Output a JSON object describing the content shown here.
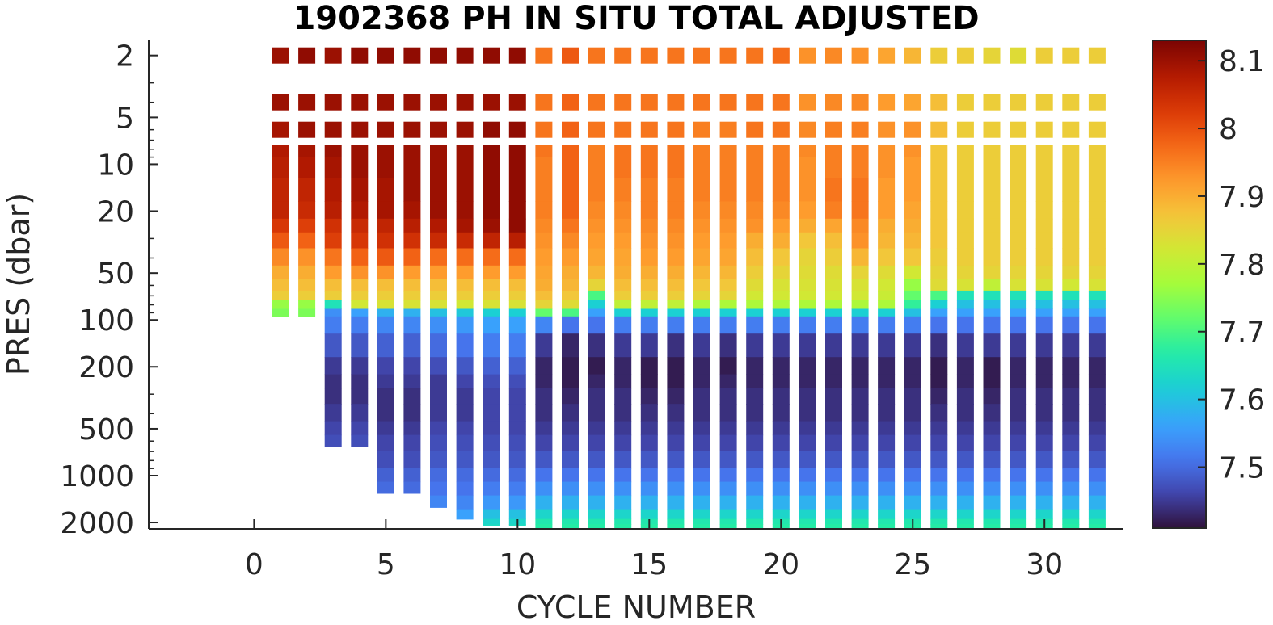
{
  "chart_data": {
    "type": "heatmap",
    "title": "1902368  PH IN SITU TOTAL ADJUSTED",
    "xlabel": "CYCLE NUMBER",
    "ylabel": "PRES (dbar)",
    "xlim": [
      -4,
      33
    ],
    "ylim": [
      1.6,
      2200
    ],
    "y_scale": "log",
    "y_reversed": true,
    "x_ticks": [
      "0",
      "5",
      "10",
      "15",
      "20",
      "25",
      "30"
    ],
    "y_ticks": [
      "2",
      "5",
      "10",
      "20",
      "50",
      "100",
      "200",
      "500",
      "1000",
      "2000"
    ],
    "colorbar": {
      "range": [
        7.41,
        8.13
      ],
      "ticks": [
        "7.5",
        "7.6",
        "7.7",
        "7.8",
        "7.9",
        "8",
        "8.1"
      ],
      "colormap": "turbo",
      "placement": "right"
    },
    "pres_levels": [
      2,
      4,
      6,
      8,
      10,
      15,
      20,
      25,
      30,
      40,
      50,
      60,
      70,
      80,
      90,
      100,
      150,
      200,
      250,
      300,
      400,
      500,
      600,
      800,
      1000,
      1200,
      1500,
      1800,
      2000,
      2100
    ],
    "profiles": [
      {
        "cycle": 1,
        "max_pres": 95,
        "ph": [
          8.1,
          8.1,
          8.09,
          8.08,
          8.07,
          8.06,
          8.06,
          8.03,
          7.99,
          7.94,
          7.9,
          7.88,
          7.86,
          7.76,
          7.74
        ]
      },
      {
        "cycle": 2,
        "max_pres": 95,
        "ph": [
          8.11,
          8.1,
          8.1,
          8.09,
          8.08,
          8.06,
          8.05,
          8.02,
          7.98,
          7.93,
          7.9,
          7.88,
          7.86,
          7.76,
          7.74
        ]
      },
      {
        "cycle": 3,
        "max_pres": 650,
        "ph": [
          8.1,
          8.1,
          8.1,
          8.1,
          8.09,
          8.08,
          8.07,
          8.04,
          8.02,
          7.96,
          7.92,
          7.88,
          7.86,
          7.65,
          7.54,
          7.52,
          7.48,
          7.45,
          7.44,
          7.44,
          7.45,
          7.46,
          7.47
        ]
      },
      {
        "cycle": 4,
        "max_pres": 650,
        "ph": [
          8.11,
          8.1,
          8.1,
          8.1,
          8.1,
          8.09,
          8.08,
          8.05,
          8.03,
          7.98,
          7.93,
          7.88,
          7.86,
          7.82,
          7.56,
          7.52,
          7.48,
          7.45,
          7.44,
          7.44,
          7.45,
          7.46,
          7.47
        ]
      },
      {
        "cycle": 5,
        "max_pres": 1300,
        "ph": [
          8.11,
          8.1,
          8.1,
          8.1,
          8.1,
          8.09,
          8.09,
          8.06,
          8.04,
          7.99,
          7.93,
          7.88,
          7.86,
          7.83,
          7.58,
          7.53,
          7.49,
          7.46,
          7.45,
          7.44,
          7.44,
          7.45,
          7.46,
          7.47,
          7.49,
          7.5
        ]
      },
      {
        "cycle": 6,
        "max_pres": 1300,
        "ph": [
          8.11,
          8.1,
          8.1,
          8.1,
          8.1,
          8.1,
          8.09,
          8.07,
          8.04,
          7.98,
          7.92,
          7.88,
          7.86,
          7.83,
          7.58,
          7.53,
          7.49,
          7.46,
          7.45,
          7.44,
          7.44,
          7.45,
          7.46,
          7.47,
          7.49,
          7.5
        ]
      },
      {
        "cycle": 7,
        "max_pres": 1600,
        "ph": [
          8.11,
          8.1,
          8.1,
          8.1,
          8.1,
          8.1,
          8.1,
          8.08,
          8.05,
          7.97,
          7.92,
          7.88,
          7.86,
          7.83,
          7.6,
          7.54,
          7.5,
          7.47,
          7.45,
          7.45,
          7.45,
          7.46,
          7.47,
          7.48,
          7.5,
          7.51,
          7.53
        ]
      },
      {
        "cycle": 8,
        "max_pres": 1900,
        "ph": [
          8.11,
          8.1,
          8.1,
          8.1,
          8.1,
          8.1,
          8.1,
          8.09,
          8.05,
          7.97,
          7.92,
          7.88,
          7.86,
          7.82,
          7.61,
          7.55,
          7.51,
          7.48,
          7.46,
          7.45,
          7.45,
          7.46,
          7.47,
          7.48,
          7.5,
          7.51,
          7.53,
          7.56
        ]
      },
      {
        "cycle": 9,
        "max_pres": 2100,
        "ph": [
          8.11,
          8.1,
          8.11,
          8.11,
          8.11,
          8.11,
          8.11,
          8.1,
          8.06,
          7.97,
          7.92,
          7.88,
          7.86,
          7.83,
          7.62,
          7.56,
          7.52,
          7.49,
          7.47,
          7.46,
          7.46,
          7.46,
          7.47,
          7.48,
          7.5,
          7.52,
          7.55,
          7.6,
          7.63,
          7.64
        ]
      },
      {
        "cycle": 10,
        "max_pres": 2100,
        "ph": [
          8.11,
          8.1,
          8.11,
          8.11,
          8.11,
          8.11,
          8.11,
          8.11,
          8.07,
          7.97,
          7.92,
          7.88,
          7.86,
          7.83,
          7.62,
          7.56,
          7.52,
          7.49,
          7.47,
          7.46,
          7.46,
          7.46,
          7.47,
          7.48,
          7.5,
          7.52,
          7.55,
          7.6,
          7.63,
          7.64
        ]
      },
      {
        "cycle": 11,
        "max_pres": 2200,
        "ph": [
          7.96,
          7.96,
          7.96,
          7.96,
          7.95,
          7.95,
          7.95,
          7.94,
          7.93,
          7.92,
          7.91,
          7.9,
          7.88,
          7.85,
          7.72,
          7.53,
          7.45,
          7.43,
          7.43,
          7.44,
          7.44,
          7.45,
          7.46,
          7.48,
          7.51,
          7.54,
          7.58,
          7.63,
          7.66,
          7.67
        ]
      },
      {
        "cycle": 12,
        "max_pres": 2200,
        "ph": [
          7.99,
          7.98,
          7.98,
          7.98,
          7.98,
          7.98,
          7.98,
          7.96,
          7.94,
          7.92,
          7.9,
          7.89,
          7.87,
          7.84,
          7.7,
          7.51,
          7.43,
          7.42,
          7.42,
          7.43,
          7.44,
          7.45,
          7.46,
          7.48,
          7.51,
          7.54,
          7.58,
          7.63,
          7.66,
          7.67
        ]
      },
      {
        "cycle": 13,
        "max_pres": 2200,
        "ph": [
          7.96,
          7.96,
          7.96,
          7.95,
          7.95,
          7.95,
          7.94,
          7.93,
          7.92,
          7.91,
          7.89,
          7.85,
          7.7,
          7.62,
          7.56,
          7.51,
          7.44,
          7.42,
          7.43,
          7.44,
          7.44,
          7.45,
          7.46,
          7.48,
          7.51,
          7.54,
          7.58,
          7.63,
          7.66,
          7.67
        ]
      },
      {
        "cycle": 14,
        "max_pres": 2200,
        "ph": [
          7.96,
          7.96,
          7.96,
          7.96,
          7.96,
          7.95,
          7.94,
          7.93,
          7.92,
          7.91,
          7.9,
          7.88,
          7.86,
          7.8,
          7.62,
          7.52,
          7.45,
          7.43,
          7.43,
          7.44,
          7.44,
          7.45,
          7.46,
          7.48,
          7.51,
          7.54,
          7.58,
          7.63,
          7.66,
          7.67
        ]
      },
      {
        "cycle": 15,
        "max_pres": 2200,
        "ph": [
          7.96,
          7.96,
          7.96,
          7.96,
          7.96,
          7.95,
          7.95,
          7.94,
          7.93,
          7.92,
          7.9,
          7.88,
          7.86,
          7.8,
          7.62,
          7.52,
          7.45,
          7.42,
          7.42,
          7.43,
          7.44,
          7.45,
          7.46,
          7.48,
          7.51,
          7.54,
          7.58,
          7.63,
          7.66,
          7.67
        ]
      },
      {
        "cycle": 16,
        "max_pres": 2200,
        "ph": [
          7.96,
          7.96,
          7.96,
          7.96,
          7.96,
          7.95,
          7.95,
          7.94,
          7.93,
          7.92,
          7.9,
          7.88,
          7.86,
          7.8,
          7.62,
          7.52,
          7.44,
          7.42,
          7.42,
          7.43,
          7.44,
          7.45,
          7.46,
          7.48,
          7.51,
          7.54,
          7.58,
          7.63,
          7.66,
          7.67
        ]
      },
      {
        "cycle": 17,
        "max_pres": 2200,
        "ph": [
          7.96,
          7.96,
          7.95,
          7.95,
          7.95,
          7.95,
          7.94,
          7.93,
          7.92,
          7.91,
          7.89,
          7.87,
          7.85,
          7.78,
          7.62,
          7.52,
          7.45,
          7.43,
          7.43,
          7.44,
          7.44,
          7.45,
          7.46,
          7.48,
          7.51,
          7.54,
          7.58,
          7.63,
          7.66,
          7.67
        ]
      },
      {
        "cycle": 18,
        "max_pres": 2200,
        "ph": [
          7.96,
          7.96,
          7.95,
          7.95,
          7.95,
          7.95,
          7.94,
          7.93,
          7.92,
          7.91,
          7.89,
          7.87,
          7.85,
          7.78,
          7.62,
          7.52,
          7.44,
          7.42,
          7.43,
          7.44,
          7.44,
          7.45,
          7.46,
          7.48,
          7.51,
          7.54,
          7.58,
          7.63,
          7.66,
          7.67
        ]
      },
      {
        "cycle": 19,
        "max_pres": 2200,
        "ph": [
          7.96,
          7.96,
          7.96,
          7.95,
          7.95,
          7.95,
          7.94,
          7.93,
          7.9,
          7.88,
          7.86,
          7.84,
          7.82,
          7.78,
          7.62,
          7.52,
          7.45,
          7.43,
          7.43,
          7.44,
          7.44,
          7.45,
          7.46,
          7.48,
          7.51,
          7.54,
          7.58,
          7.63,
          7.66,
          7.67
        ]
      },
      {
        "cycle": 20,
        "max_pres": 2200,
        "ph": [
          7.97,
          7.96,
          7.96,
          7.95,
          7.95,
          7.95,
          7.94,
          7.92,
          7.9,
          7.87,
          7.85,
          7.83,
          7.82,
          7.78,
          7.62,
          7.52,
          7.45,
          7.43,
          7.43,
          7.44,
          7.44,
          7.45,
          7.46,
          7.48,
          7.51,
          7.54,
          7.58,
          7.63,
          7.66,
          7.67
        ]
      },
      {
        "cycle": 21,
        "max_pres": 2200,
        "ph": [
          7.93,
          7.93,
          7.94,
          7.94,
          7.93,
          7.93,
          7.92,
          7.9,
          7.87,
          7.85,
          7.84,
          7.83,
          7.82,
          7.78,
          7.62,
          7.52,
          7.45,
          7.43,
          7.43,
          7.44,
          7.44,
          7.45,
          7.46,
          7.48,
          7.51,
          7.54,
          7.58,
          7.63,
          7.66,
          7.67
        ]
      },
      {
        "cycle": 22,
        "max_pres": 2200,
        "ph": [
          7.94,
          7.94,
          7.95,
          7.95,
          7.95,
          7.96,
          7.95,
          7.91,
          7.88,
          7.86,
          7.84,
          7.83,
          7.82,
          7.78,
          7.62,
          7.52,
          7.45,
          7.43,
          7.43,
          7.44,
          7.44,
          7.45,
          7.46,
          7.48,
          7.51,
          7.54,
          7.58,
          7.63,
          7.66,
          7.67
        ]
      },
      {
        "cycle": 23,
        "max_pres": 2200,
        "ph": [
          7.93,
          7.94,
          7.95,
          7.95,
          7.95,
          7.96,
          7.96,
          7.94,
          7.93,
          7.89,
          7.85,
          7.83,
          7.82,
          7.78,
          7.62,
          7.52,
          7.45,
          7.43,
          7.43,
          7.44,
          7.44,
          7.45,
          7.46,
          7.48,
          7.51,
          7.54,
          7.58,
          7.63,
          7.66,
          7.67
        ]
      },
      {
        "cycle": 24,
        "max_pres": 2200,
        "ph": [
          7.91,
          7.92,
          7.93,
          7.93,
          7.93,
          7.92,
          7.92,
          7.9,
          7.89,
          7.87,
          7.84,
          7.82,
          7.81,
          7.78,
          7.62,
          7.52,
          7.45,
          7.43,
          7.43,
          7.44,
          7.44,
          7.45,
          7.46,
          7.48,
          7.51,
          7.54,
          7.58,
          7.63,
          7.66,
          7.67
        ]
      },
      {
        "cycle": 25,
        "max_pres": 2200,
        "ph": [
          7.89,
          7.91,
          7.93,
          7.93,
          7.92,
          7.92,
          7.91,
          7.9,
          7.89,
          7.87,
          7.82,
          7.76,
          7.72,
          7.68,
          7.6,
          7.52,
          7.45,
          7.43,
          7.43,
          7.44,
          7.44,
          7.45,
          7.46,
          7.48,
          7.51,
          7.54,
          7.58,
          7.63,
          7.66,
          7.67
        ]
      },
      {
        "cycle": 26,
        "max_pres": 2200,
        "ph": [
          7.86,
          7.88,
          7.88,
          7.87,
          7.87,
          7.87,
          7.87,
          7.87,
          7.87,
          7.86,
          7.85,
          7.84,
          7.7,
          7.62,
          7.56,
          7.51,
          7.44,
          7.42,
          7.42,
          7.43,
          7.44,
          7.45,
          7.46,
          7.48,
          7.51,
          7.54,
          7.58,
          7.63,
          7.66,
          7.67
        ]
      },
      {
        "cycle": 27,
        "max_pres": 2200,
        "ph": [
          7.86,
          7.86,
          7.86,
          7.86,
          7.86,
          7.86,
          7.86,
          7.86,
          7.86,
          7.86,
          7.85,
          7.83,
          7.65,
          7.6,
          7.56,
          7.51,
          7.45,
          7.43,
          7.43,
          7.44,
          7.44,
          7.45,
          7.46,
          7.48,
          7.51,
          7.54,
          7.58,
          7.63,
          7.66,
          7.67
        ]
      },
      {
        "cycle": 28,
        "max_pres": 2200,
        "ph": [
          7.85,
          7.86,
          7.86,
          7.86,
          7.86,
          7.86,
          7.86,
          7.86,
          7.86,
          7.86,
          7.85,
          7.8,
          7.65,
          7.6,
          7.56,
          7.51,
          7.45,
          7.42,
          7.42,
          7.43,
          7.44,
          7.45,
          7.46,
          7.48,
          7.51,
          7.54,
          7.58,
          7.63,
          7.66,
          7.67
        ]
      },
      {
        "cycle": 29,
        "max_pres": 2200,
        "ph": [
          7.84,
          7.86,
          7.86,
          7.86,
          7.86,
          7.86,
          7.86,
          7.86,
          7.86,
          7.86,
          7.85,
          7.83,
          7.65,
          7.6,
          7.56,
          7.51,
          7.45,
          7.43,
          7.43,
          7.44,
          7.44,
          7.45,
          7.46,
          7.48,
          7.51,
          7.54,
          7.58,
          7.63,
          7.66,
          7.67
        ]
      },
      {
        "cycle": 30,
        "max_pres": 2200,
        "ph": [
          7.86,
          7.86,
          7.86,
          7.86,
          7.86,
          7.86,
          7.86,
          7.86,
          7.86,
          7.86,
          7.85,
          7.83,
          7.65,
          7.6,
          7.56,
          7.51,
          7.45,
          7.43,
          7.43,
          7.44,
          7.44,
          7.45,
          7.46,
          7.48,
          7.51,
          7.54,
          7.58,
          7.63,
          7.66,
          7.67
        ]
      },
      {
        "cycle": 31,
        "max_pres": 2200,
        "ph": [
          7.86,
          7.86,
          7.86,
          7.86,
          7.86,
          7.86,
          7.86,
          7.86,
          7.86,
          7.86,
          7.85,
          7.82,
          7.65,
          7.6,
          7.56,
          7.51,
          7.45,
          7.43,
          7.43,
          7.44,
          7.44,
          7.45,
          7.46,
          7.48,
          7.51,
          7.54,
          7.58,
          7.63,
          7.66,
          7.67
        ]
      },
      {
        "cycle": 32,
        "max_pres": 2200,
        "ph": [
          7.86,
          7.86,
          7.86,
          7.86,
          7.86,
          7.86,
          7.86,
          7.86,
          7.86,
          7.86,
          7.85,
          7.83,
          7.65,
          7.6,
          7.56,
          7.51,
          7.45,
          7.43,
          7.43,
          7.44,
          7.44,
          7.45,
          7.46,
          7.48,
          7.51,
          7.54,
          7.58,
          7.63,
          7.66,
          7.67
        ]
      }
    ]
  }
}
